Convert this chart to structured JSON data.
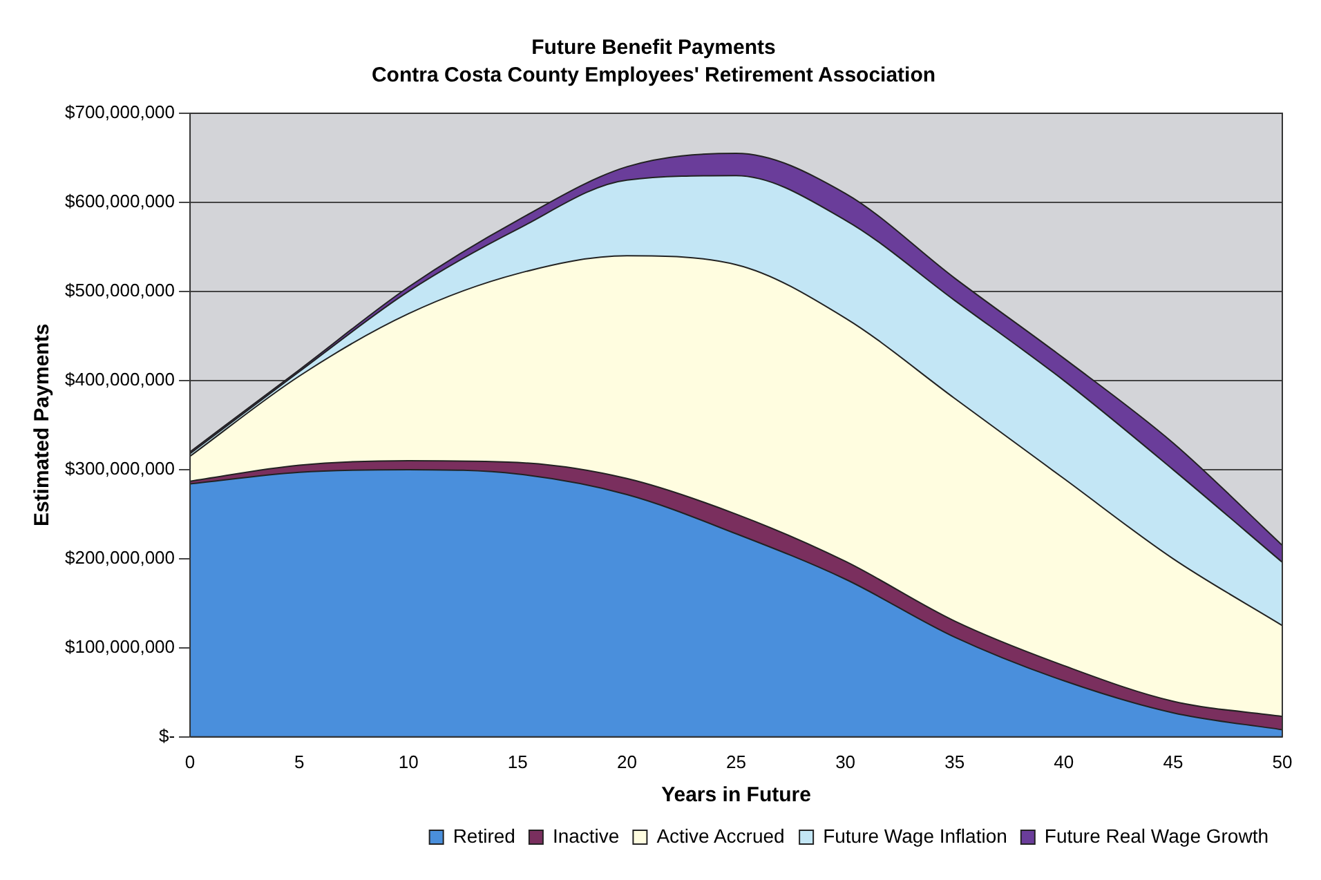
{
  "chart_data": {
    "type": "area",
    "title": "Future Benefit Payments",
    "subtitle": "Contra Costa County Employees' Retirement Association",
    "xlabel": "Years in Future",
    "ylabel": "Estimated Payments",
    "stacked": true,
    "x": [
      0,
      5,
      10,
      15,
      20,
      25,
      30,
      35,
      40,
      45,
      50
    ],
    "series": [
      {
        "name": "Retired",
        "color": "#4a8fdc",
        "values": [
          284000000,
          297000000,
          300000000,
          295000000,
          272000000,
          228000000,
          177000000,
          112000000,
          63000000,
          27000000,
          8000000
        ]
      },
      {
        "name": "Inactive",
        "color": "#7a2f5e",
        "values": [
          3000000,
          8000000,
          10000000,
          13000000,
          18000000,
          22000000,
          20000000,
          18000000,
          17000000,
          13000000,
          15000000
        ]
      },
      {
        "name": "Active Accrued",
        "color": "#fffde0",
        "values": [
          28000000,
          100000000,
          165000000,
          212000000,
          250000000,
          280000000,
          273000000,
          250000000,
          210000000,
          160000000,
          102000000
        ]
      },
      {
        "name": "Future Wage Inflation",
        "color": "#c3e6f5",
        "values": [
          3000000,
          5000000,
          25000000,
          50000000,
          85000000,
          100000000,
          110000000,
          110000000,
          110000000,
          100000000,
          71000000
        ]
      },
      {
        "name": "Future Real Wage Growth",
        "color": "#6a3d9a",
        "values": [
          2000000,
          2000000,
          5000000,
          10000000,
          15000000,
          25000000,
          30000000,
          25000000,
          25000000,
          30000000,
          19000000
        ]
      }
    ],
    "xlim": [
      0,
      50
    ],
    "xticks": [
      0,
      5,
      10,
      15,
      20,
      25,
      30,
      35,
      40,
      45,
      50
    ],
    "ylim": [
      0,
      700000000
    ],
    "yticks": [
      {
        "value": 0,
        "label": "$-"
      },
      {
        "value": 100000000,
        "label": "$100,000,000"
      },
      {
        "value": 200000000,
        "label": "$200,000,000"
      },
      {
        "value": 300000000,
        "label": "$300,000,000"
      },
      {
        "value": 400000000,
        "label": "$400,000,000"
      },
      {
        "value": 500000000,
        "label": "$500,000,000"
      },
      {
        "value": 600000000,
        "label": "$600,000,000"
      },
      {
        "value": 700000000,
        "label": "$700,000,000"
      }
    ],
    "grid": "y",
    "legend": "bottom"
  }
}
